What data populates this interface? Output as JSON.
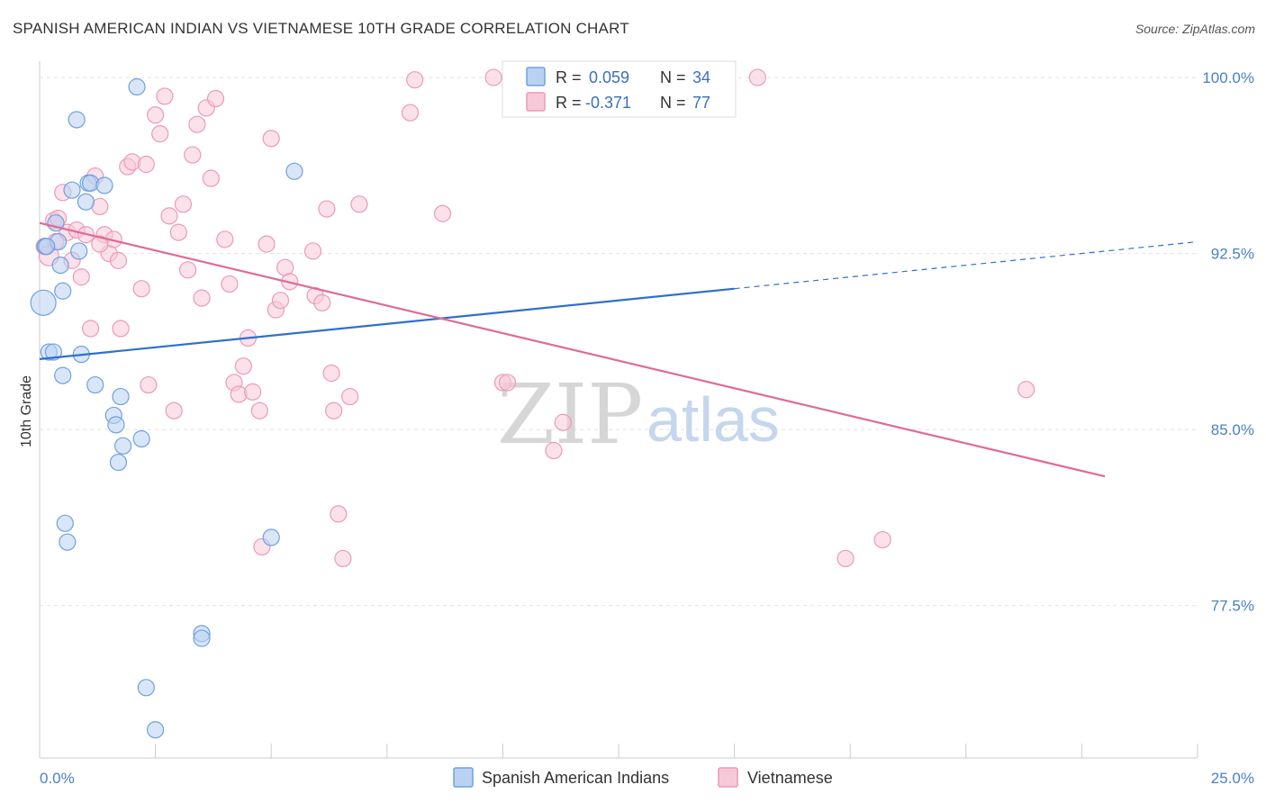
{
  "header": {
    "title": "SPANISH AMERICAN INDIAN VS VIETNAMESE 10TH GRADE CORRELATION CHART",
    "source": "Source: ZipAtlas.com"
  },
  "watermark": {
    "zip": "ZIP",
    "atlas": "atlas"
  },
  "colors": {
    "blue": "#6fa1e0",
    "blue_fill": "#b9d2f2",
    "blue_line": "#2f6fce",
    "pink": "#ec9ab5",
    "pink_fill": "#f7c9d8",
    "pink_line": "#e06a96",
    "tick_text": "#4a7fc8"
  },
  "stats": [
    {
      "r_label": "R =",
      "r_value": "0.059",
      "n_label": "N =",
      "n_value": "34"
    },
    {
      "r_label": "R =",
      "r_value": "-0.371",
      "n_label": "N =",
      "n_value": "77"
    }
  ],
  "chart_data": {
    "type": "scatter",
    "xlabel": "",
    "ylabel": "10th Grade",
    "xlim": [
      0,
      25
    ],
    "ylim": [
      71,
      101
    ],
    "x_tick_labels": [
      "0.0%",
      "25.0%"
    ],
    "y_ticks": [
      77.5,
      85.0,
      92.5,
      100.0
    ],
    "y_tick_labels": [
      "77.5%",
      "85.0%",
      "92.5%",
      "100.0%"
    ],
    "grid": true,
    "legend_position": "bottom-center",
    "series": [
      {
        "name": "Spanish American Indians",
        "color": "#6fa1e0",
        "trend": {
          "x": [
            0,
            15
          ],
          "y": [
            88.0,
            91.0
          ],
          "dashed_to_x": 25,
          "dashed_to_y": 93.0
        },
        "points": [
          [
            0.08,
            90.4
          ],
          [
            0.12,
            92.8
          ],
          [
            0.2,
            88.3
          ],
          [
            0.3,
            88.3
          ],
          [
            0.35,
            93.8
          ],
          [
            0.4,
            93.0
          ],
          [
            0.45,
            92.0
          ],
          [
            0.5,
            87.3
          ],
          [
            0.5,
            90.9
          ],
          [
            0.55,
            81.0
          ],
          [
            0.6,
            80.2
          ],
          [
            0.7,
            95.2
          ],
          [
            0.8,
            98.2
          ],
          [
            0.85,
            92.6
          ],
          [
            0.9,
            88.2
          ],
          [
            1.0,
            94.7
          ],
          [
            1.05,
            95.5
          ],
          [
            1.1,
            95.5
          ],
          [
            1.2,
            86.9
          ],
          [
            1.4,
            95.4
          ],
          [
            1.6,
            85.6
          ],
          [
            1.65,
            85.2
          ],
          [
            1.7,
            83.6
          ],
          [
            1.75,
            86.4
          ],
          [
            1.8,
            84.3
          ],
          [
            2.1,
            99.6
          ],
          [
            2.2,
            84.6
          ],
          [
            2.3,
            74.0
          ],
          [
            2.5,
            72.2
          ],
          [
            3.5,
            76.3
          ],
          [
            3.5,
            76.1
          ],
          [
            5.0,
            80.4
          ],
          [
            5.5,
            96.0
          ],
          [
            0.15,
            92.8
          ]
        ],
        "point_radii": [
          14,
          9,
          9,
          9,
          9,
          9,
          9,
          9,
          9,
          9,
          9,
          9,
          9,
          9,
          9,
          9,
          9,
          9,
          9,
          9,
          9,
          9,
          9,
          9,
          9,
          9,
          9,
          9,
          9,
          9,
          9,
          9,
          9,
          9
        ]
      },
      {
        "name": "Vietnamese",
        "color": "#ec9ab5",
        "trend": {
          "x": [
            0,
            23
          ],
          "y": [
            93.8,
            83.0
          ]
        },
        "points": [
          [
            0.1,
            92.8
          ],
          [
            0.2,
            92.4
          ],
          [
            0.3,
            93.9
          ],
          [
            0.4,
            94.0
          ],
          [
            0.5,
            95.1
          ],
          [
            0.6,
            93.4
          ],
          [
            0.7,
            92.2
          ],
          [
            0.8,
            93.5
          ],
          [
            0.9,
            91.5
          ],
          [
            1.0,
            93.3
          ],
          [
            1.1,
            89.3
          ],
          [
            1.2,
            95.8
          ],
          [
            1.3,
            94.5
          ],
          [
            1.4,
            93.3
          ],
          [
            1.5,
            92.5
          ],
          [
            1.6,
            93.1
          ],
          [
            1.7,
            92.2
          ],
          [
            1.75,
            89.3
          ],
          [
            1.9,
            96.2
          ],
          [
            2.0,
            96.4
          ],
          [
            2.2,
            91.0
          ],
          [
            2.3,
            96.3
          ],
          [
            2.35,
            86.9
          ],
          [
            2.5,
            98.4
          ],
          [
            2.6,
            97.6
          ],
          [
            2.7,
            99.2
          ],
          [
            2.8,
            94.1
          ],
          [
            2.9,
            85.8
          ],
          [
            3.0,
            93.4
          ],
          [
            3.1,
            94.6
          ],
          [
            3.2,
            91.8
          ],
          [
            3.3,
            96.7
          ],
          [
            3.4,
            98.0
          ],
          [
            3.5,
            90.6
          ],
          [
            3.6,
            98.7
          ],
          [
            3.7,
            95.7
          ],
          [
            3.8,
            99.1
          ],
          [
            4.0,
            93.1
          ],
          [
            4.1,
            91.2
          ],
          [
            4.2,
            87.0
          ],
          [
            4.3,
            86.5
          ],
          [
            4.4,
            87.7
          ],
          [
            4.5,
            88.9
          ],
          [
            4.6,
            86.6
          ],
          [
            4.8,
            80.0
          ],
          [
            4.9,
            92.9
          ],
          [
            5.0,
            97.4
          ],
          [
            5.1,
            90.1
          ],
          [
            5.2,
            90.5
          ],
          [
            5.3,
            91.9
          ],
          [
            5.4,
            91.3
          ],
          [
            5.9,
            92.6
          ],
          [
            5.95,
            90.7
          ],
          [
            6.1,
            90.4
          ],
          [
            6.2,
            94.4
          ],
          [
            6.3,
            87.4
          ],
          [
            6.35,
            85.8
          ],
          [
            6.45,
            81.4
          ],
          [
            6.55,
            79.5
          ],
          [
            6.7,
            86.4
          ],
          [
            6.9,
            94.6
          ],
          [
            8.0,
            98.5
          ],
          [
            8.1,
            99.9
          ],
          [
            8.7,
            94.2
          ],
          [
            9.8,
            100.0
          ],
          [
            10.0,
            87.0
          ],
          [
            10.1,
            87.0
          ],
          [
            11.1,
            84.1
          ],
          [
            11.3,
            85.3
          ],
          [
            12.1,
            100.0
          ],
          [
            15.5,
            100.0
          ],
          [
            17.4,
            79.5
          ],
          [
            18.2,
            80.3
          ],
          [
            21.3,
            86.7
          ],
          [
            4.75,
            85.8
          ],
          [
            1.3,
            92.9
          ],
          [
            0.35,
            93.0
          ]
        ],
        "point_radii": [
          9,
          11,
          9,
          9,
          9,
          9,
          9,
          9,
          9,
          9,
          9,
          9,
          9,
          9,
          9,
          9,
          9,
          9,
          9,
          9,
          9,
          9,
          9,
          9,
          9,
          9,
          9,
          9,
          9,
          9,
          9,
          9,
          9,
          9,
          9,
          9,
          9,
          9,
          9,
          9,
          9,
          9,
          9,
          9,
          9,
          9,
          9,
          9,
          9,
          9,
          9,
          9,
          9,
          9,
          9,
          9,
          9,
          9,
          9,
          9,
          9,
          9,
          9,
          9,
          9,
          9,
          9,
          9,
          9,
          9,
          9,
          9,
          9,
          9,
          9,
          9,
          9
        ]
      }
    ]
  }
}
